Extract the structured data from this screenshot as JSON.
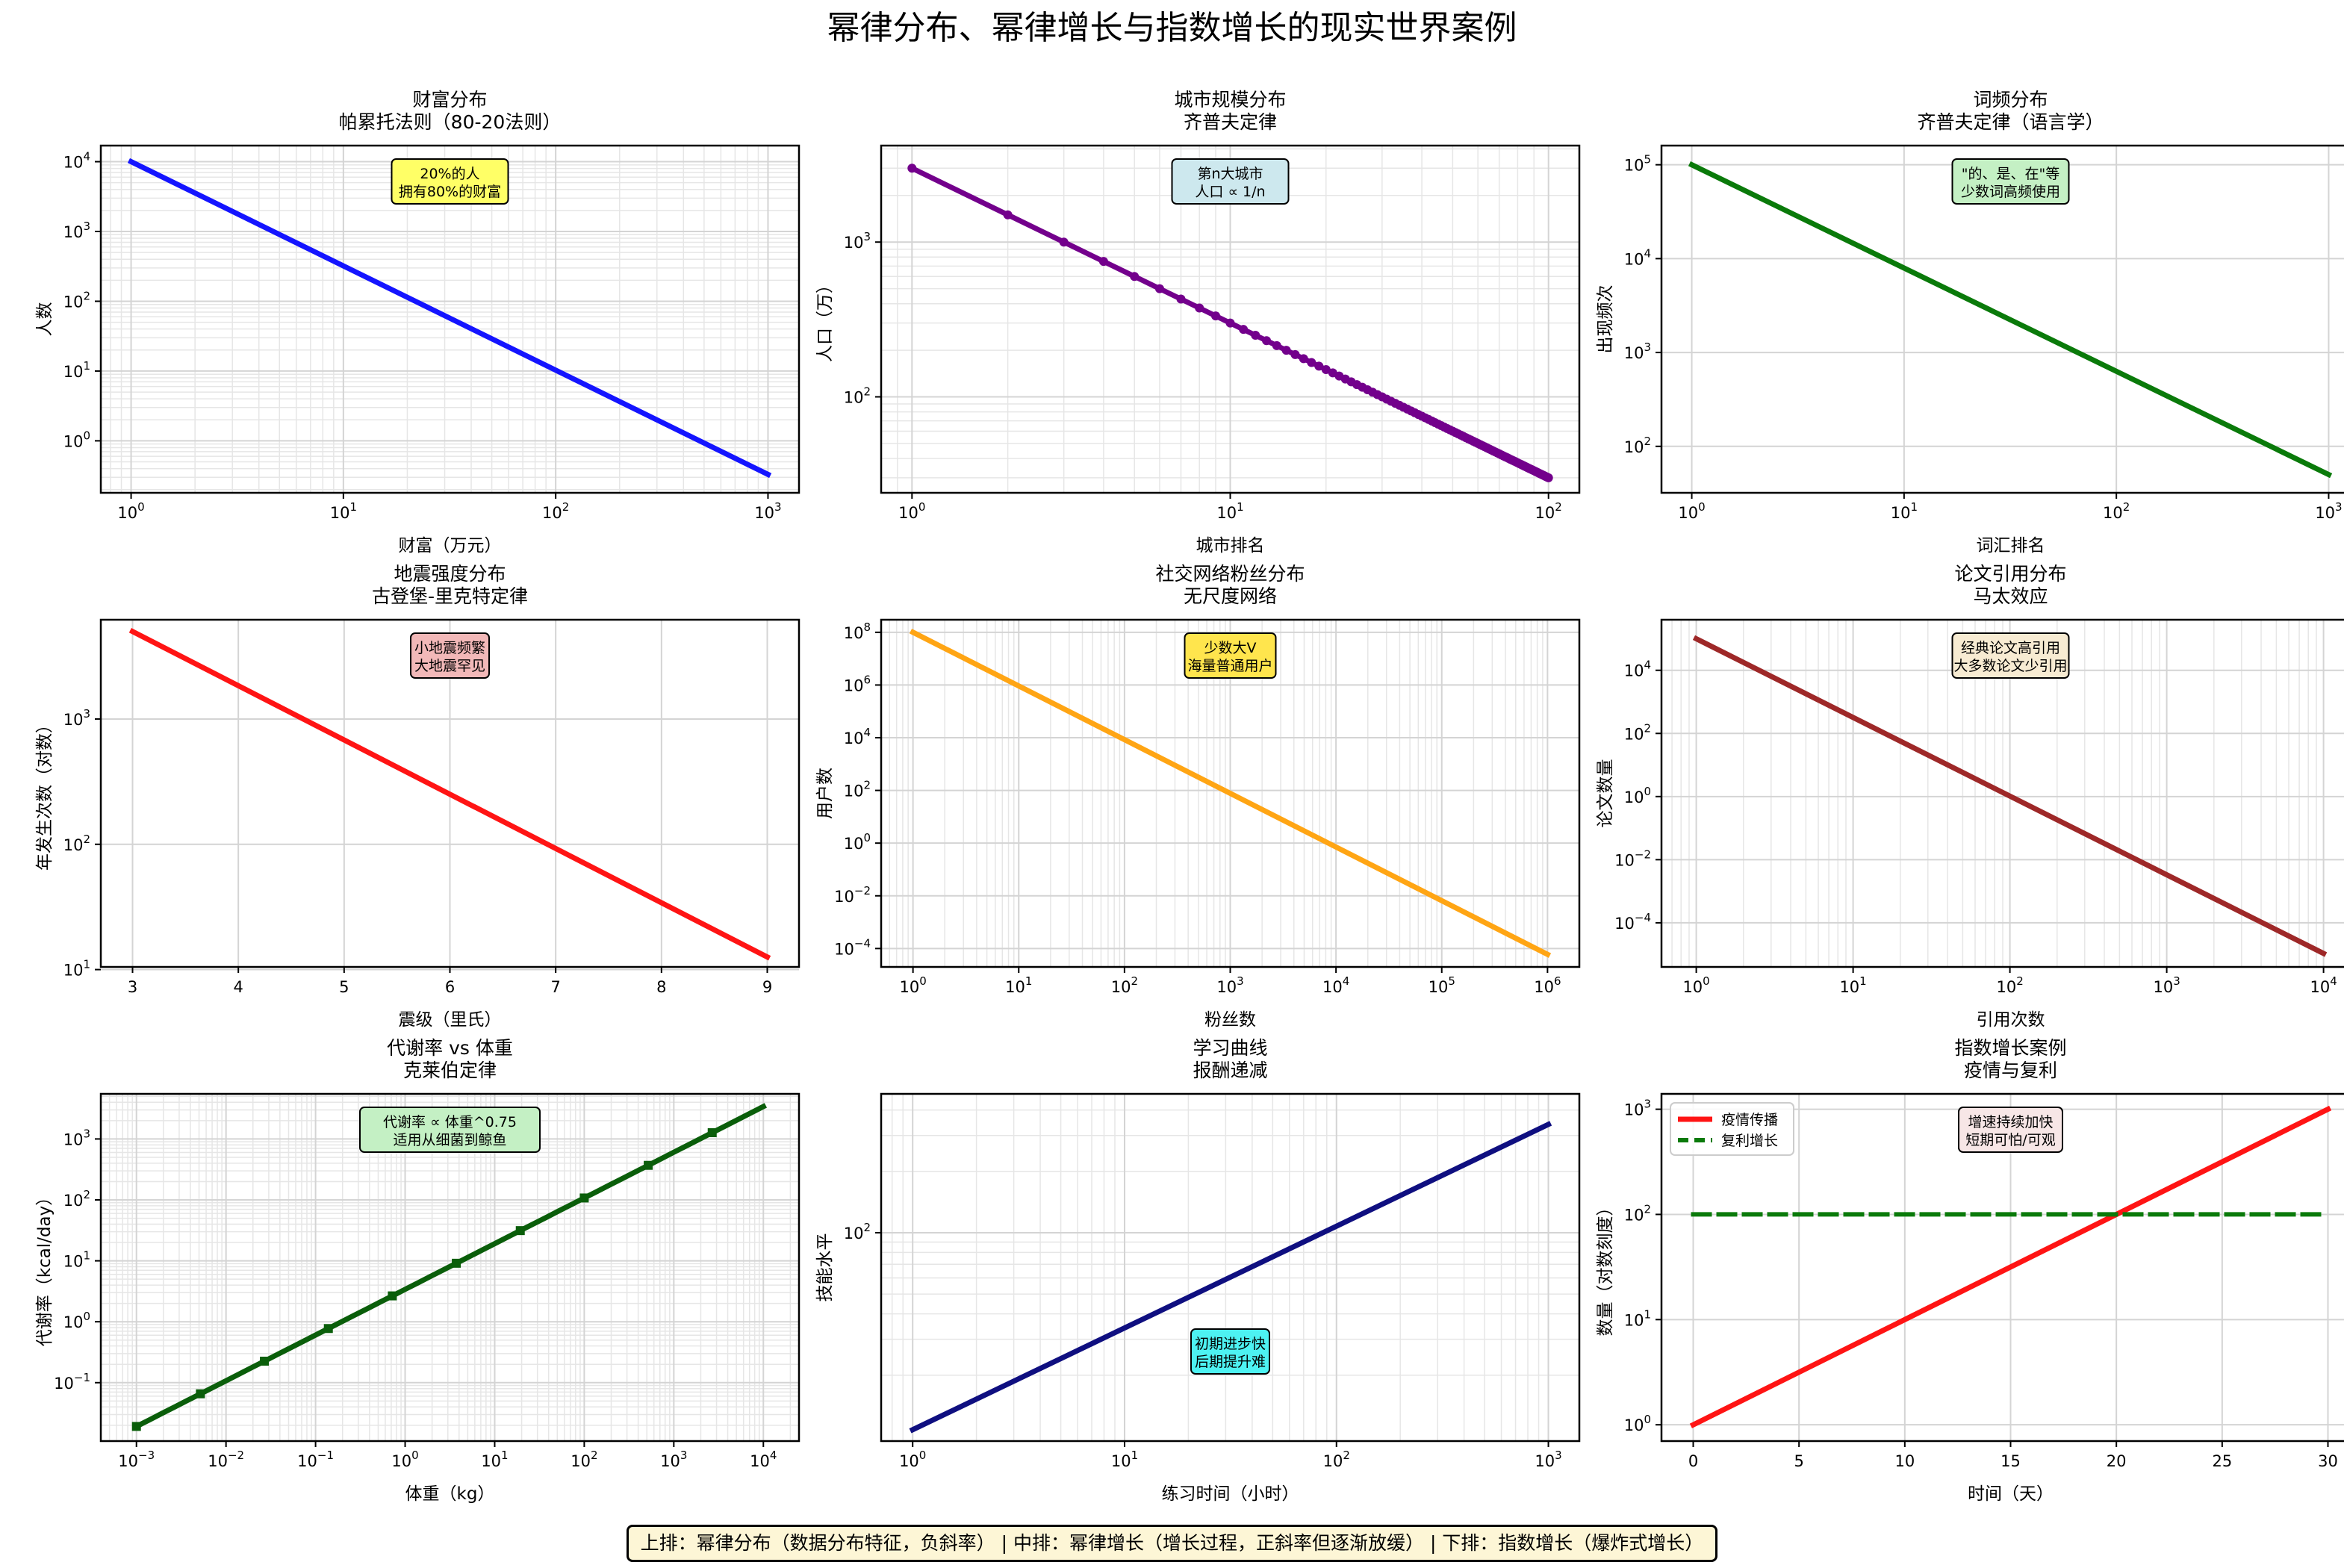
{
  "title": "幂律分布、幂律增长与指数增长的现实世界案例",
  "footer": "上排：幂律分布（数据分布特征，负斜率） | 中排：幂律增长（增长过程，正斜率但逐渐放缓） | 下排：指数增长（爆炸式增长）",
  "chart_data": [
    {
      "id": "wealth",
      "type": "line",
      "title": [
        "财富分布",
        "帕累托法则（80-20法则）"
      ],
      "xlabel": "财富（万元）",
      "ylabel": "人数",
      "xscale": "log",
      "yscale": "log",
      "xlim": [
        0.72,
        1400
      ],
      "ylim": [
        0.18,
        17000
      ],
      "xticks": [
        1,
        10,
        100,
        1000
      ],
      "yticks": [
        1,
        10,
        100,
        1000,
        10000
      ],
      "minor_x": true,
      "minor_y": true,
      "annotation": {
        "lines": [
          "20%的人",
          "拥有80%的财富"
        ],
        "bg": "#ffff66",
        "pos": "top-center"
      },
      "series": [
        {
          "color": "#1414ff",
          "width": 7,
          "x": [
            1,
            1000
          ],
          "y": [
            10000,
            0.33
          ]
        }
      ]
    },
    {
      "id": "city",
      "type": "line",
      "title": [
        "城市规模分布",
        "齐普夫定律"
      ],
      "xlabel": "城市排名",
      "ylabel": "人口（万）",
      "xscale": "log",
      "yscale": "log",
      "xlim": [
        0.8,
        125
      ],
      "ylim": [
        24,
        4200
      ],
      "xticks": [
        1,
        10,
        100
      ],
      "yticks": [
        100,
        1000
      ],
      "minor_x": true,
      "minor_y": true,
      "annotation": {
        "lines": [
          "第n大城市",
          "人口 ∝ 1/n"
        ],
        "bg": "#cde8ee",
        "pos": "top-center"
      },
      "series": [
        {
          "color": "#73008c",
          "width": 7,
          "x_range": [
            1,
            100
          ],
          "y_formula": "3000/n",
          "markers": true
        }
      ]
    },
    {
      "id": "word",
      "type": "line",
      "title": [
        "词频分布",
        "齐普夫定律（语言学）"
      ],
      "xlabel": "词汇排名",
      "ylabel": "出现频次",
      "xscale": "log",
      "yscale": "log",
      "xlim": [
        0.72,
        1400
      ],
      "ylim": [
        32,
        160000
      ],
      "xticks": [
        1,
        10,
        100,
        1000
      ],
      "yticks": [
        100,
        1000,
        10000,
        100000
      ],
      "minor_x": false,
      "minor_y": false,
      "annotation": {
        "lines": [
          "\"的、是、在\"等",
          "少数词高频使用"
        ],
        "bg": "#c4f0c4",
        "pos": "top-center"
      },
      "series": [
        {
          "color": "#0a7a0a",
          "width": 7,
          "x": [
            1,
            1000
          ],
          "y": [
            100000,
            50
          ]
        }
      ]
    },
    {
      "id": "quake",
      "type": "line",
      "title": [
        "地震强度分布",
        "古登堡-里克特定律"
      ],
      "xlabel": "震级（里氏）",
      "ylabel": "年发生次数（对数）",
      "xscale": "linear",
      "yscale": "log",
      "xlim": [
        2.7,
        9.3
      ],
      "ylim": [
        10.5,
        6200
      ],
      "xticks": [
        3,
        4,
        5,
        6,
        7,
        8,
        9
      ],
      "yticks": [
        10,
        100,
        1000
      ],
      "minor_x": false,
      "minor_y": false,
      "annotation": {
        "lines": [
          "小地震频繁",
          "大地震罕见"
        ],
        "bg": "#f2b8b8",
        "pos": "top-center"
      },
      "series": [
        {
          "color": "#ff1414",
          "width": 7,
          "x": [
            3,
            9
          ],
          "y": [
            5000,
            12.6
          ]
        }
      ]
    },
    {
      "id": "followers",
      "type": "line",
      "title": [
        "社交网络粉丝分布",
        "无尺度网络"
      ],
      "xlabel": "粉丝数",
      "ylabel": "用户数",
      "xscale": "log",
      "yscale": "log",
      "xlim": [
        0.5,
        2000000
      ],
      "ylim": 3e-05,
      "ylim_full": [
        2e-05,
        300000000
      ],
      "xticks": [
        1,
        10,
        100,
        1000,
        10000,
        100000,
        1000000
      ],
      "yticks": [
        0.0001,
        0.01,
        1,
        100,
        10000,
        1000000,
        100000000
      ],
      "minor_x": true,
      "minor_y": false,
      "annotation": {
        "lines": [
          "少数大V",
          "海量普通用户"
        ],
        "bg": "#ffe54d",
        "pos": "top-center"
      },
      "series": [
        {
          "color": "#ffa514",
          "width": 7,
          "x": [
            1,
            1000000
          ],
          "y": [
            100000000,
            6e-05
          ]
        }
      ]
    },
    {
      "id": "citation",
      "type": "line",
      "title": [
        "论文引用分布",
        "马太效应"
      ],
      "xlabel": "引用次数",
      "ylabel": "论文数量",
      "xscale": "log",
      "yscale": "log",
      "xlim": [
        0.6,
        17000
      ],
      "ylim_full": [
        4e-06,
        400000
      ],
      "xticks": [
        1,
        10,
        100,
        1000,
        10000
      ],
      "yticks": [
        0.0001,
        0.01,
        1,
        100,
        10000
      ],
      "minor_x": true,
      "minor_y": false,
      "annotation": {
        "lines": [
          "经典论文高引用",
          "大多数论文少引用"
        ],
        "bg": "#f7ebd2",
        "pos": "top-center"
      },
      "series": [
        {
          "color": "#9e2828",
          "width": 7,
          "x": [
            1,
            10000
          ],
          "y": [
            100000,
            1.07e-05
          ]
        }
      ]
    },
    {
      "id": "metabolic",
      "type": "line",
      "title": [
        "代谢率 vs 体重",
        "克莱伯定律"
      ],
      "xlabel": "体重（kg）",
      "ylabel": "代谢率（kcal/day）",
      "xscale": "log",
      "yscale": "log",
      "xlim": [
        0.0004,
        25000
      ],
      "ylim_full": [
        0.011,
        5500
      ],
      "xticks": [
        0.001,
        0.01,
        0.1,
        1,
        10,
        100,
        1000,
        10000
      ],
      "yticks": [
        0.1,
        1,
        10,
        100,
        1000
      ],
      "minor_x": true,
      "minor_y": true,
      "annotation": {
        "lines": [
          "代谢率 ∝ 体重^0.75",
          "适用从细菌到鲸鱼"
        ],
        "bg": "#c4f0c4",
        "pos": "top-center"
      },
      "series": [
        {
          "color": "#0a5e0a",
          "width": 7,
          "x_log_range": [
            0.001,
            10000
          ],
          "exp": 0.75,
          "coef": 3.4,
          "markers_every": 5
        }
      ]
    },
    {
      "id": "learning",
      "type": "line",
      "title": [
        "学习曲线",
        "报酬递减"
      ],
      "xlabel": "练习时间（小时）",
      "ylabel": "技能水平",
      "xscale": "log",
      "yscale": "log",
      "xlim": [
        0.71,
        1400
      ],
      "ylim_full": [
        9.5,
        480
      ],
      "xticks": [
        1,
        10,
        100,
        1000
      ],
      "yticks": [
        100
      ],
      "minor_x": true,
      "minor_y": true,
      "annotation": {
        "lines": [
          "初期进步快",
          "后期提升难"
        ],
        "bg": "#4df2f2",
        "pos": "bottom-center"
      },
      "series": [
        {
          "color": "#0f0f80",
          "width": 7,
          "x": [
            1,
            1000
          ],
          "y": [
            10.8,
            340
          ]
        }
      ]
    },
    {
      "id": "exponential",
      "type": "line",
      "title": [
        "指数增长案例",
        "疫情与复利"
      ],
      "xlabel": "时间（天）",
      "ylabel": "数量（对数刻度）",
      "xscale": "linear",
      "yscale": "log",
      "xlim": [
        -1.5,
        31.5
      ],
      "ylim_full": [
        0.7,
        1400
      ],
      "xticks": [
        0,
        5,
        10,
        15,
        20,
        25,
        30
      ],
      "yticks": [
        1,
        10,
        100,
        1000
      ],
      "minor_x": false,
      "minor_y": false,
      "annotation": {
        "lines": [
          "增速持续加快",
          "短期可怕/可观"
        ],
        "bg": "#f7e6e6",
        "pos": "top-center"
      },
      "legend": {
        "position": "top-left",
        "entries": [
          "疫情传播",
          "复利增长"
        ]
      },
      "series": [
        {
          "name": "疫情传播",
          "color": "#ff1414",
          "width": 7,
          "x": [
            0,
            30
          ],
          "y": [
            1,
            1000
          ]
        },
        {
          "name": "复利增长",
          "color": "#0a7a0a",
          "width": 6,
          "dash": "22,12",
          "x": [
            0,
            30
          ],
          "y": [
            100,
            100
          ]
        }
      ]
    }
  ]
}
